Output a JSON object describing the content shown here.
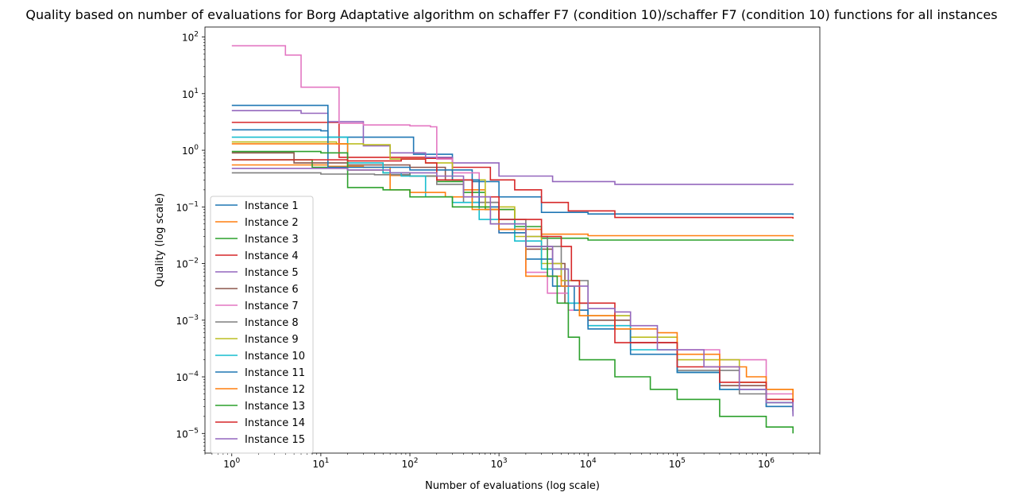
{
  "chart_data": {
    "type": "line",
    "title": "Quality based on number of evaluations for Borg Adaptative algorithm on schaffer F7 (condition 10)/schaffer F7 (condition 10) functions for all instances",
    "xlabel": "Number of evaluations (log scale)",
    "ylabel": "Quality (log scale)",
    "xscale": "log",
    "yscale": "log",
    "xlim": [
      0.5,
      4000000
    ],
    "ylim": [
      4.5e-06,
      150
    ],
    "x_ticks": [
      1,
      10,
      100,
      1000,
      10000,
      100000,
      1000000
    ],
    "x_tick_labels": [
      [
        "10",
        "0"
      ],
      [
        "10",
        "1"
      ],
      [
        "10",
        "2"
      ],
      [
        "10",
        "3"
      ],
      [
        "10",
        "4"
      ],
      [
        "10",
        "5"
      ],
      [
        "10",
        "6"
      ]
    ],
    "y_ticks": [
      1e-05,
      0.0001,
      0.001,
      0.01,
      0.1,
      1,
      10,
      100
    ],
    "y_tick_labels": [
      [
        "10",
        "−5"
      ],
      [
        "10",
        "−4"
      ],
      [
        "10",
        "−3"
      ],
      [
        "10",
        "−2"
      ],
      [
        "10",
        "−1"
      ],
      [
        "10",
        "0"
      ],
      [
        "10",
        "1"
      ],
      [
        "10",
        "2"
      ]
    ],
    "grid": false,
    "legend": "lower-left",
    "series": [
      {
        "name": "Instance 1",
        "color": "#1f77b4",
        "points": [
          [
            1,
            2.3
          ],
          [
            10,
            2.2
          ],
          [
            12,
            1.7
          ],
          [
            100,
            1.7
          ],
          [
            110,
            0.85
          ],
          [
            200,
            0.85
          ],
          [
            300,
            0.45
          ],
          [
            500,
            0.28
          ],
          [
            1000,
            0.15
          ],
          [
            3000,
            0.08
          ],
          [
            10000,
            0.075
          ],
          [
            2000000,
            0.072
          ]
        ]
      },
      {
        "name": "Instance 2",
        "color": "#ff7f0e",
        "points": [
          [
            1,
            0.55
          ],
          [
            12,
            0.52
          ],
          [
            30,
            0.5
          ],
          [
            60,
            0.36
          ],
          [
            100,
            0.35
          ],
          [
            200,
            0.3
          ],
          [
            400,
            0.2
          ],
          [
            700,
            0.09
          ],
          [
            1500,
            0.04
          ],
          [
            3000,
            0.033
          ],
          [
            10000,
            0.031
          ],
          [
            2000000,
            0.03
          ]
        ]
      },
      {
        "name": "Instance 3",
        "color": "#2ca02c",
        "points": [
          [
            1,
            0.68
          ],
          [
            8,
            0.5
          ],
          [
            20,
            0.45
          ],
          [
            50,
            0.4
          ],
          [
            100,
            0.35
          ],
          [
            200,
            0.28
          ],
          [
            400,
            0.18
          ],
          [
            700,
            0.09
          ],
          [
            1500,
            0.045
          ],
          [
            3000,
            0.028
          ],
          [
            10000,
            0.026
          ],
          [
            2000000,
            0.025
          ]
        ]
      },
      {
        "name": "Instance 4",
        "color": "#d62728",
        "points": [
          [
            1,
            3.1
          ],
          [
            14,
            3.1
          ],
          [
            16,
            0.75
          ],
          [
            50,
            0.75
          ],
          [
            150,
            0.72
          ],
          [
            300,
            0.5
          ],
          [
            800,
            0.3
          ],
          [
            1500,
            0.2
          ],
          [
            3000,
            0.12
          ],
          [
            6000,
            0.085
          ],
          [
            20000,
            0.065
          ],
          [
            2000000,
            0.062
          ]
        ]
      },
      {
        "name": "Instance 5",
        "color": "#9467bd",
        "points": [
          [
            1,
            5.0
          ],
          [
            5,
            5.0
          ],
          [
            6,
            4.5
          ],
          [
            12,
            3.2
          ],
          [
            22,
            3.2
          ],
          [
            30,
            1.2
          ],
          [
            60,
            0.9
          ],
          [
            150,
            0.75
          ],
          [
            300,
            0.6
          ],
          [
            1000,
            0.35
          ],
          [
            4000,
            0.28
          ],
          [
            20000,
            0.25
          ],
          [
            2000000,
            0.245
          ]
        ]
      },
      {
        "name": "Instance 6",
        "color": "#8c564b",
        "points": [
          [
            1,
            0.9
          ],
          [
            5,
            0.6
          ],
          [
            20,
            0.55
          ],
          [
            100,
            0.5
          ],
          [
            250,
            0.3
          ],
          [
            500,
            0.12
          ],
          [
            1000,
            0.04
          ],
          [
            2000,
            0.018
          ],
          [
            4000,
            0.01
          ],
          [
            5500,
            0.002
          ],
          [
            10000,
            0.001
          ],
          [
            30000,
            0.0004
          ],
          [
            100000,
            0.00012
          ],
          [
            300000,
            7e-05
          ],
          [
            1000000,
            3.5e-05
          ],
          [
            2000000,
            2.8e-05
          ]
        ]
      },
      {
        "name": "Instance 7",
        "color": "#e377c2",
        "points": [
          [
            1,
            70
          ],
          [
            3,
            70
          ],
          [
            4,
            48
          ],
          [
            5.5,
            48
          ],
          [
            6,
            13
          ],
          [
            15,
            13
          ],
          [
            16,
            3.0
          ],
          [
            30,
            2.8
          ],
          [
            100,
            2.7
          ],
          [
            170,
            2.6
          ],
          [
            200,
            0.7
          ],
          [
            300,
            0.4
          ],
          [
            600,
            0.12
          ],
          [
            1000,
            0.035
          ],
          [
            2000,
            0.007
          ],
          [
            3500,
            0.003
          ],
          [
            6000,
            0.0015
          ],
          [
            10000,
            0.0008
          ],
          [
            30000,
            0.0004
          ],
          [
            100000,
            0.0003
          ],
          [
            300000,
            0.0002
          ],
          [
            1000000,
            5e-05
          ],
          [
            2000000,
            3.5e-05
          ]
        ]
      },
      {
        "name": "Instance 8",
        "color": "#7f7f7f",
        "points": [
          [
            1,
            0.4
          ],
          [
            10,
            0.38
          ],
          [
            40,
            0.37
          ],
          [
            100,
            0.35
          ],
          [
            200,
            0.25
          ],
          [
            400,
            0.12
          ],
          [
            1000,
            0.06
          ],
          [
            2000,
            0.03
          ],
          [
            3500,
            0.02
          ],
          [
            5000,
            0.005
          ],
          [
            10000,
            0.0012
          ],
          [
            30000,
            0.0004
          ],
          [
            100000,
            0.00013
          ],
          [
            500000,
            5e-05
          ],
          [
            1000000,
            3e-05
          ],
          [
            2000000,
            2.4e-05
          ]
        ]
      },
      {
        "name": "Instance 9",
        "color": "#bcbd22",
        "points": [
          [
            1,
            1.4
          ],
          [
            15,
            1.3
          ],
          [
            30,
            1.25
          ],
          [
            60,
            0.7
          ],
          [
            150,
            0.6
          ],
          [
            300,
            0.3
          ],
          [
            700,
            0.1
          ],
          [
            1500,
            0.03
          ],
          [
            3000,
            0.01
          ],
          [
            5000,
            0.005
          ],
          [
            8000,
            0.0012
          ],
          [
            30000,
            0.0005
          ],
          [
            100000,
            0.0002
          ],
          [
            500000,
            8e-05
          ],
          [
            1000000,
            6e-05
          ],
          [
            2000000,
            4.5e-05
          ]
        ]
      },
      {
        "name": "Instance 10",
        "color": "#17becf",
        "points": [
          [
            1,
            1.7
          ],
          [
            12,
            1.7
          ],
          [
            20,
            0.6
          ],
          [
            50,
            0.4
          ],
          [
            80,
            0.35
          ],
          [
            150,
            0.15
          ],
          [
            300,
            0.12
          ],
          [
            600,
            0.06
          ],
          [
            1500,
            0.025
          ],
          [
            3000,
            0.008
          ],
          [
            6000,
            0.002
          ],
          [
            10000,
            0.0008
          ],
          [
            30000,
            0.0003
          ],
          [
            100000,
            0.00012
          ],
          [
            300000,
            6e-05
          ],
          [
            1000000,
            3.5e-05
          ],
          [
            2000000,
            2.5e-05
          ]
        ]
      },
      {
        "name": "Instance 11",
        "color": "#1f77b4",
        "points": [
          [
            1,
            6.2
          ],
          [
            11,
            6.2
          ],
          [
            12,
            0.5
          ],
          [
            100,
            0.45
          ],
          [
            300,
            0.3
          ],
          [
            600,
            0.1
          ],
          [
            1000,
            0.035
          ],
          [
            2000,
            0.012
          ],
          [
            4000,
            0.004
          ],
          [
            7000,
            0.0015
          ],
          [
            10000,
            0.0007
          ],
          [
            30000,
            0.00025
          ],
          [
            100000,
            0.00012
          ],
          [
            300000,
            6e-05
          ],
          [
            1000000,
            3e-05
          ],
          [
            2000000,
            2.2e-05
          ]
        ]
      },
      {
        "name": "Instance 12",
        "color": "#ff7f0e",
        "points": [
          [
            1,
            1.3
          ],
          [
            15,
            1.3
          ],
          [
            20,
            0.45
          ],
          [
            60,
            0.2
          ],
          [
            100,
            0.18
          ],
          [
            250,
            0.15
          ],
          [
            500,
            0.09
          ],
          [
            1000,
            0.04
          ],
          [
            2000,
            0.006
          ],
          [
            5000,
            0.004
          ],
          [
            8000,
            0.0012
          ],
          [
            20000,
            0.0007
          ],
          [
            60000,
            0.0006
          ],
          [
            100000,
            0.00025
          ],
          [
            300000,
            0.00015
          ],
          [
            600000,
            0.0001
          ],
          [
            1000000,
            6e-05
          ],
          [
            2000000,
            3.5e-05
          ]
        ]
      },
      {
        "name": "Instance 13",
        "color": "#2ca02c",
        "points": [
          [
            1,
            0.95
          ],
          [
            10,
            0.9
          ],
          [
            20,
            0.22
          ],
          [
            50,
            0.2
          ],
          [
            100,
            0.15
          ],
          [
            300,
            0.1
          ],
          [
            800,
            0.05
          ],
          [
            2000,
            0.02
          ],
          [
            3500,
            0.006
          ],
          [
            4500,
            0.002
          ],
          [
            6000,
            0.0005
          ],
          [
            8000,
            0.0002
          ],
          [
            20000,
            0.0001
          ],
          [
            50000,
            6e-05
          ],
          [
            100000,
            4e-05
          ],
          [
            300000,
            2e-05
          ],
          [
            1000000,
            1.3e-05
          ],
          [
            2000000,
            1e-05
          ]
        ]
      },
      {
        "name": "Instance 14",
        "color": "#d62728",
        "points": [
          [
            1,
            0.68
          ],
          [
            20,
            0.65
          ],
          [
            80,
            0.7
          ],
          [
            150,
            0.6
          ],
          [
            200,
            0.3
          ],
          [
            500,
            0.15
          ],
          [
            1000,
            0.06
          ],
          [
            3000,
            0.03
          ],
          [
            5000,
            0.02
          ],
          [
            6500,
            0.005
          ],
          [
            8000,
            0.002
          ],
          [
            20000,
            0.0004
          ],
          [
            100000,
            0.00015
          ],
          [
            300000,
            8e-05
          ],
          [
            1000000,
            4e-05
          ],
          [
            2000000,
            2.5e-05
          ]
        ]
      },
      {
        "name": "Instance 15",
        "color": "#9467bd",
        "points": [
          [
            1,
            0.48
          ],
          [
            20,
            0.45
          ],
          [
            60,
            0.4
          ],
          [
            200,
            0.35
          ],
          [
            400,
            0.15
          ],
          [
            800,
            0.05
          ],
          [
            2000,
            0.02
          ],
          [
            4000,
            0.008
          ],
          [
            6000,
            0.004
          ],
          [
            10000,
            0.0016
          ],
          [
            20000,
            0.0014
          ],
          [
            30000,
            0.0008
          ],
          [
            60000,
            0.0003
          ],
          [
            200000,
            0.00015
          ],
          [
            500000,
            6e-05
          ],
          [
            1000000,
            3.5e-05
          ],
          [
            2000000,
            2e-05
          ]
        ]
      }
    ]
  }
}
